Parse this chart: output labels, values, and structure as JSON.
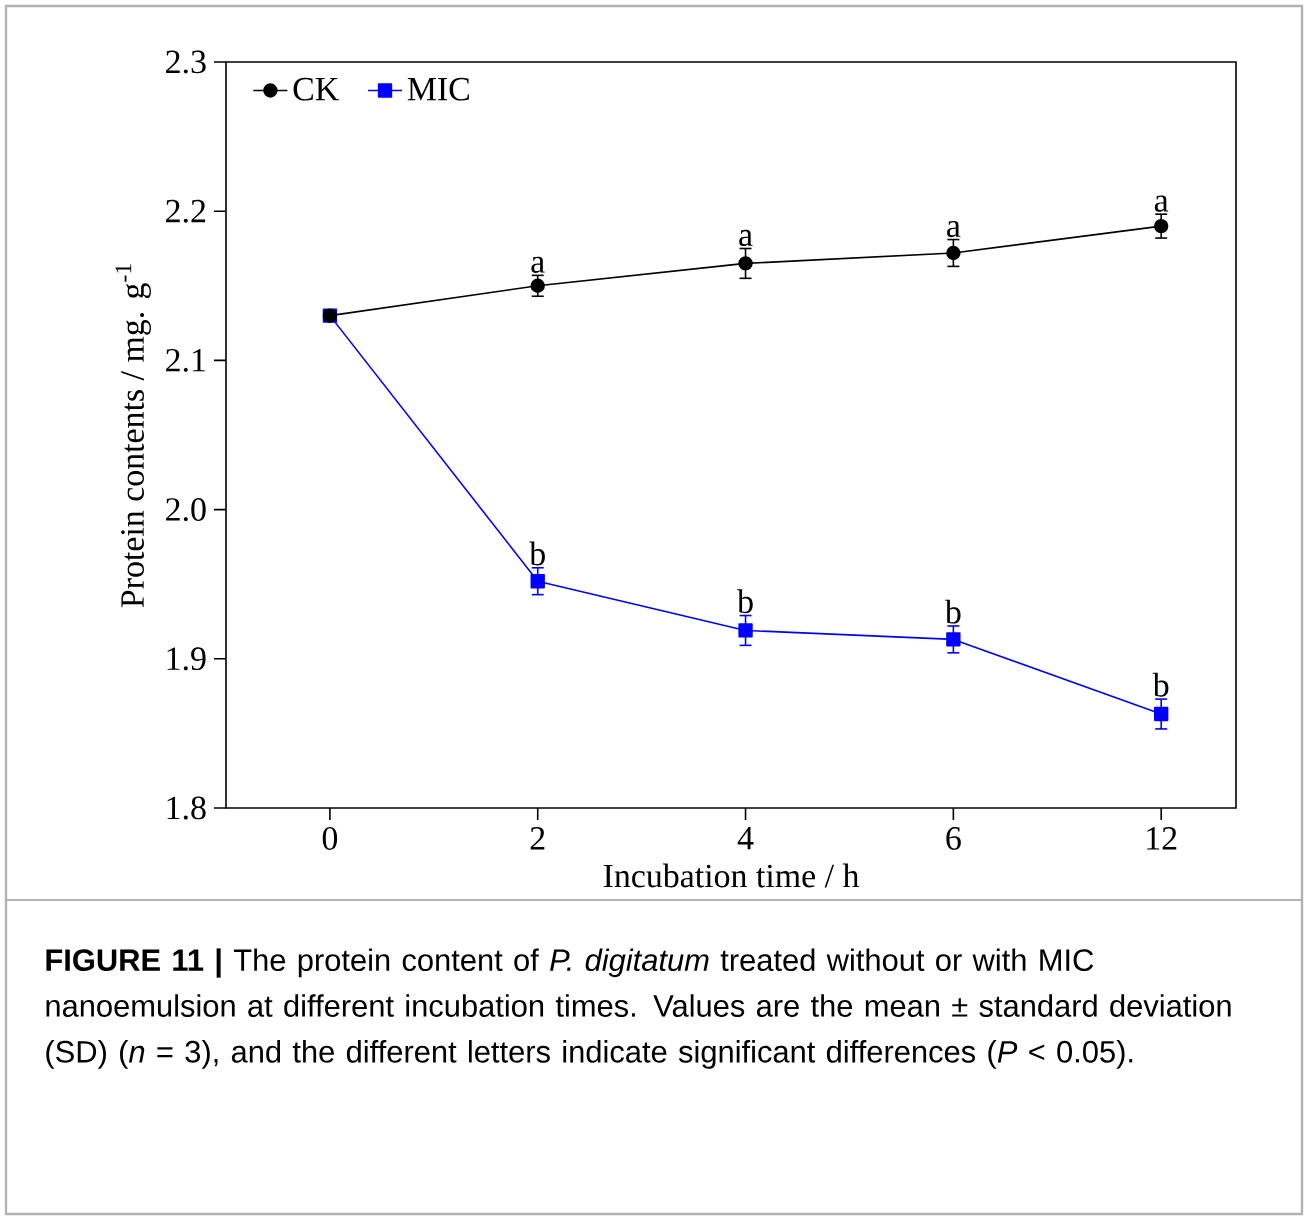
{
  "chart_data": {
    "type": "line",
    "xlabel": "Incubation time / h",
    "ylabel": "Protein contents / mg. g$^{-1}$",
    "categories": [
      "0",
      "2",
      "4",
      "6",
      "12"
    ],
    "series": [
      {
        "name": "CK",
        "color": "#000000",
        "marker": "circle",
        "values": [
          2.13,
          2.15,
          2.165,
          2.172,
          2.19
        ],
        "errors": [
          null,
          0.007,
          0.01,
          0.009,
          0.008
        ]
      },
      {
        "name": "MIC",
        "color": "#0000ff",
        "marker": "square",
        "values": [
          2.13,
          1.952,
          1.919,
          1.913,
          1.863
        ],
        "errors": [
          null,
          0.009,
          0.01,
          0.009,
          0.01
        ]
      }
    ],
    "ylim": [
      1.8,
      2.3
    ],
    "yticks": [
      1.8,
      1.9,
      {
        "value": 2.0,
        "label": "2.0"
      },
      2.1,
      2.2,
      2.3
    ],
    "grid": false,
    "legend": "top left",
    "line_style": "solid",
    "annotations": [
      {
        "text": "a",
        "x": "2",
        "y": 2.15
      },
      {
        "text": "a",
        "x": "4",
        "y": 2.165
      },
      {
        "text": "a",
        "x": "6",
        "y": 2.172
      },
      {
        "text": "a",
        "x": "12",
        "y": 2.19
      },
      {
        "text": "b",
        "x": "2",
        "y": 1.952
      },
      {
        "text": "b",
        "x": "4",
        "y": 1.919
      },
      {
        "text": "b",
        "x": "6",
        "y": 1.913
      },
      {
        "text": "b",
        "x": "12",
        "y": 1.863
      },
      "**FIGURE 11 |** The protein content of *P. digitatum* treated without or with MIC nanoemulsion at different incubation times. Values are the mean ± standard deviation (SD) (*n* = 3), and the different letters indicate significant differences (*P* < 0.05)."
    ]
  }
}
